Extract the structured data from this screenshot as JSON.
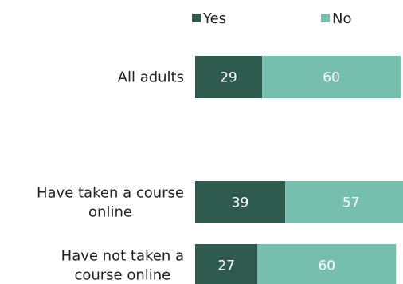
{
  "chart_data": {
    "type": "bar",
    "orientation": "horizontal",
    "stacked": true,
    "categories": [
      [
        "All adults"
      ],
      [
        "Have taken a course",
        "online"
      ],
      [
        "Have not taken a",
        "course online"
      ]
    ],
    "series": [
      {
        "name": "Yes",
        "color": "#2e5b4e",
        "values": [
          29,
          39,
          27
        ],
        "labels": [
          "29",
          "39",
          "27"
        ]
      },
      {
        "name": "No",
        "color": "#76bfae",
        "values": [
          60,
          57,
          60
        ],
        "labels": [
          "60",
          "57",
          "60"
        ]
      }
    ],
    "xlim": [
      0,
      100
    ],
    "grid": false,
    "axes_visible": false,
    "legend_position": "top"
  }
}
